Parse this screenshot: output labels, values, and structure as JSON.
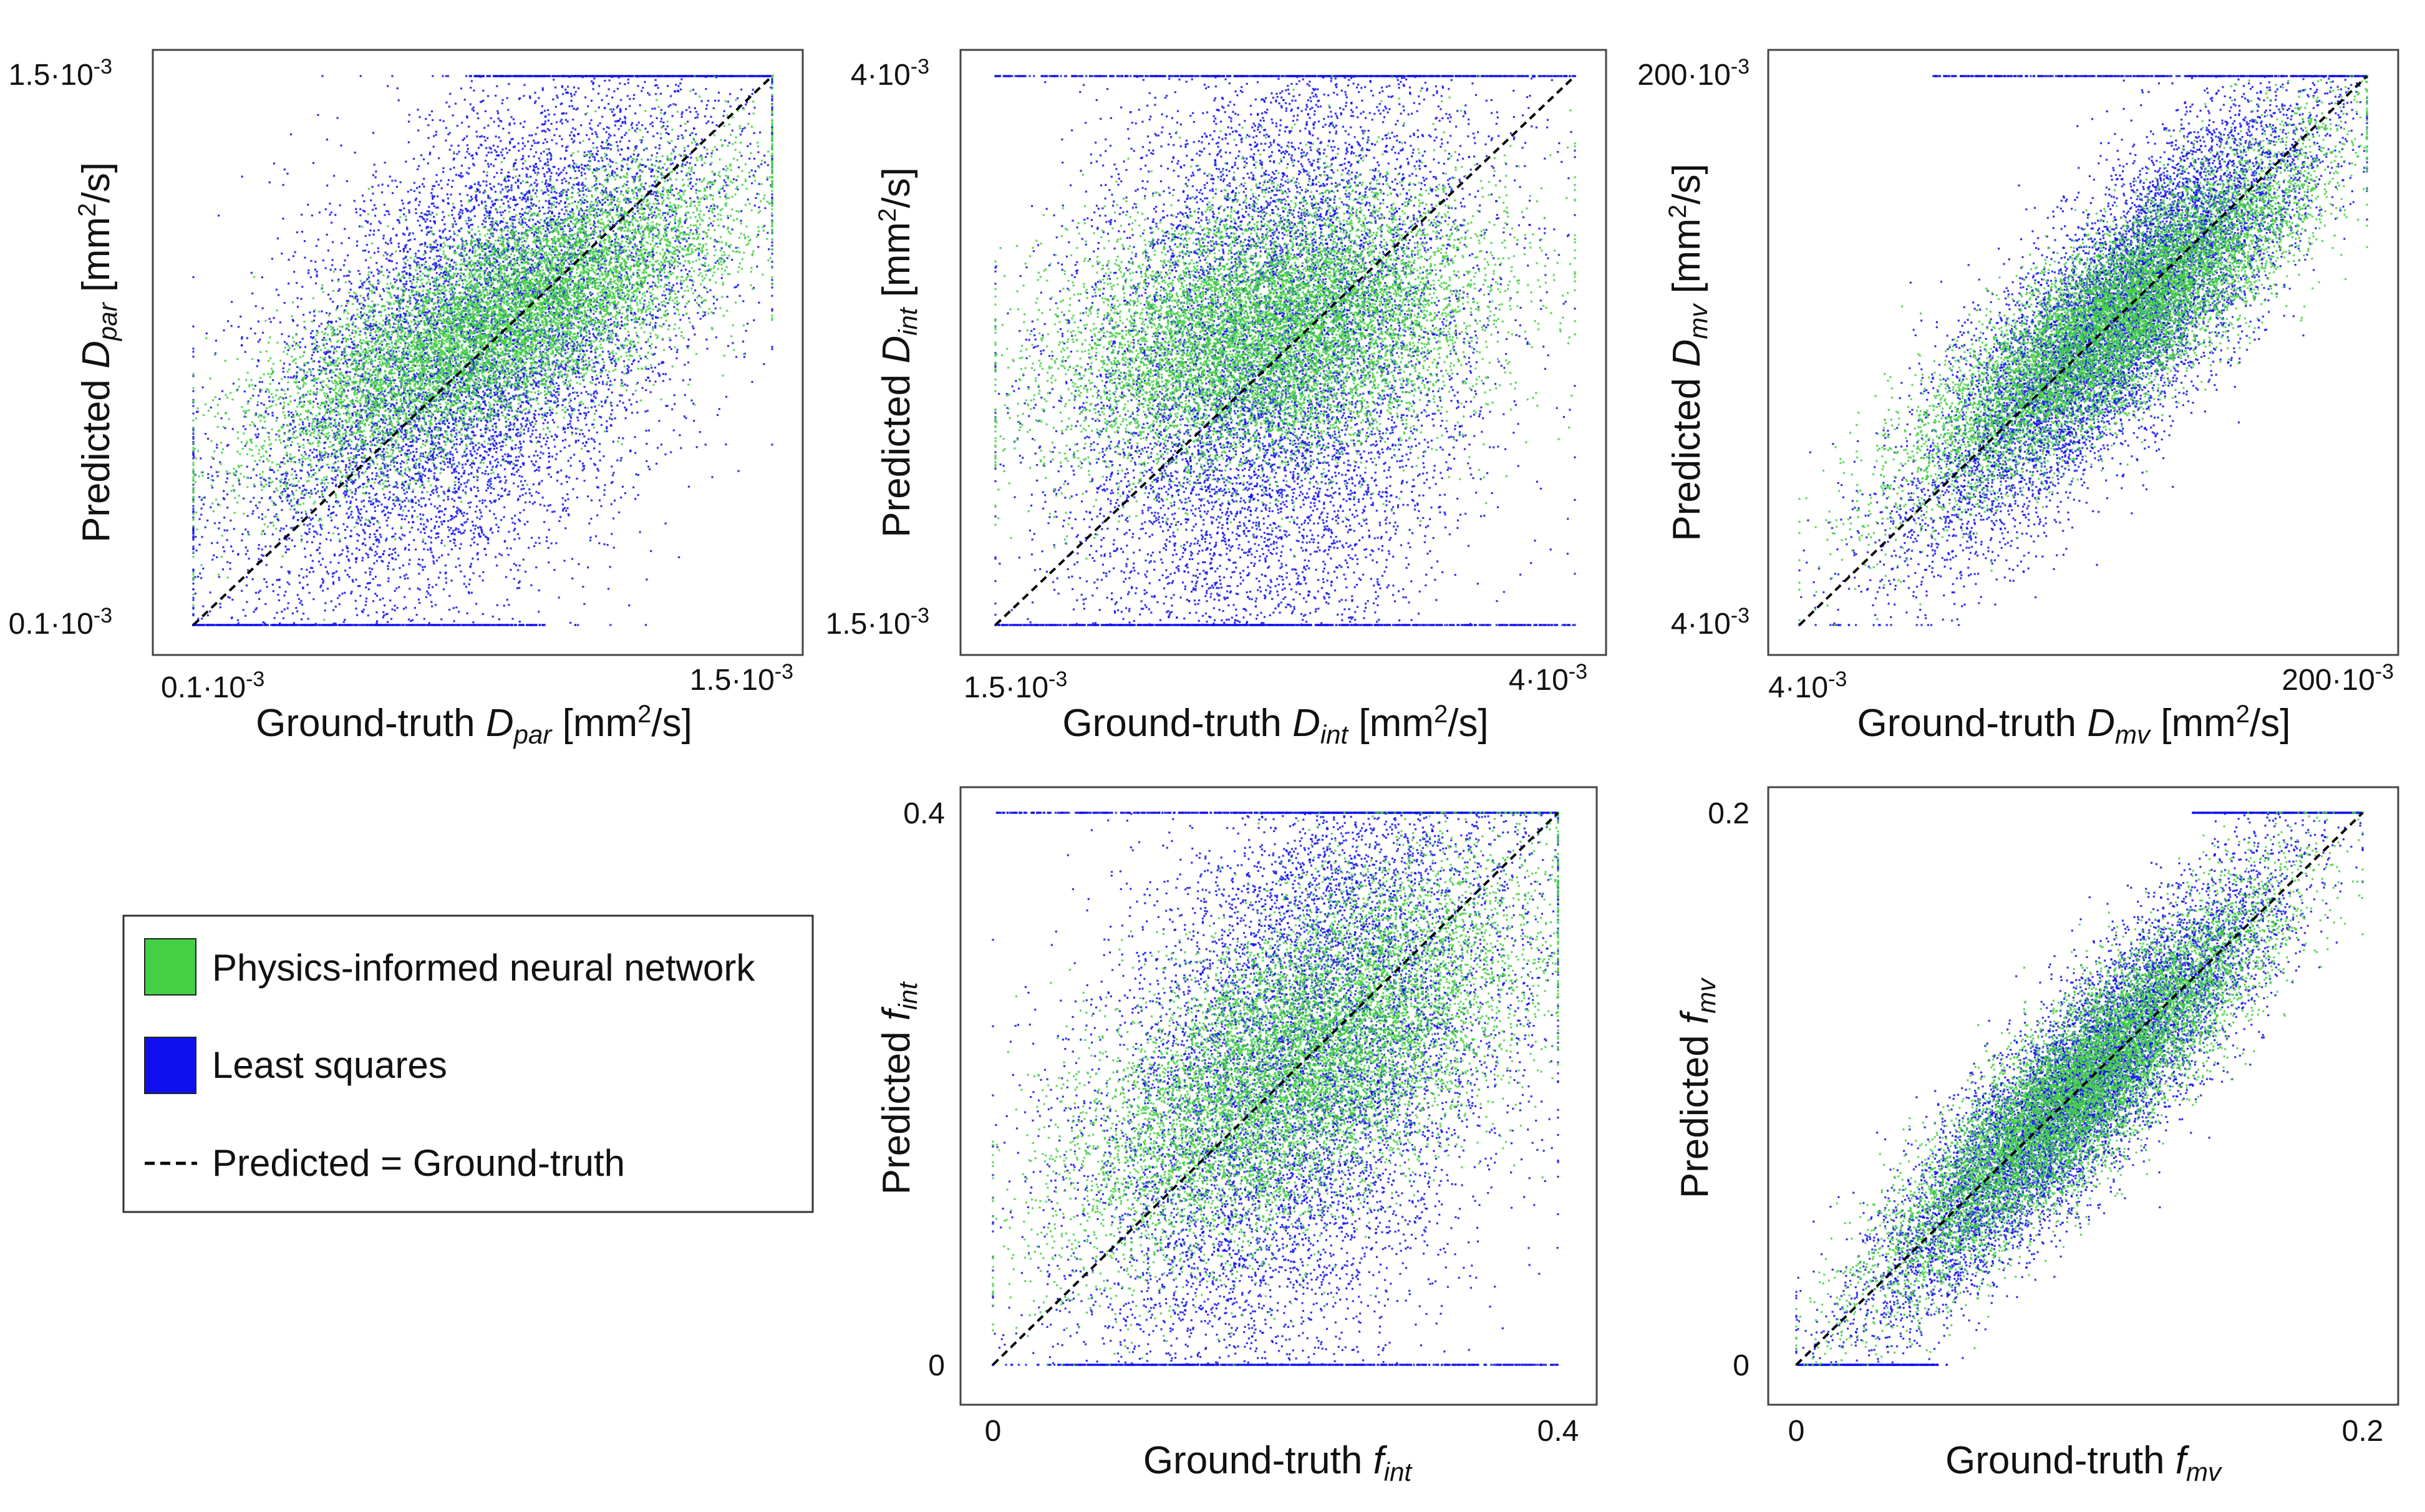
{
  "figure": {
    "legend": {
      "entries": [
        {
          "label": "Physics-informed neural network",
          "color": "#44d044",
          "kind": "swatch"
        },
        {
          "label": "Least squares",
          "color": "#1010ee",
          "kind": "swatch"
        },
        {
          "label": "Predicted = Ground-truth",
          "color": "#000000",
          "kind": "dashed-line"
        }
      ]
    }
  },
  "chart_data": [
    {
      "type": "scatter",
      "id": "dpar",
      "xlabel": {
        "pre": "Ground-truth ",
        "sym": "D",
        "sub": "par",
        "post": " [mm",
        "sup": "2",
        "tail": "/s]"
      },
      "ylabel": {
        "pre": "Predicted ",
        "sym": "D",
        "sub": "par",
        "post": " [mm",
        "sup": "2",
        "tail": "/s]"
      },
      "xlim": [
        0.1,
        1.5
      ],
      "ylim": [
        0.1,
        1.5
      ],
      "xticks": [
        {
          "label": "0.1·10",
          "exp": "-3",
          "value": 0.1
        },
        {
          "label": "1.5·10",
          "exp": "-3",
          "value": 1.5
        }
      ],
      "yticks": [
        {
          "label": "0.1·10",
          "exp": "-3",
          "value": 0.1
        },
        {
          "label": "1.5·10",
          "exp": "-3",
          "value": 1.5
        }
      ],
      "units_note": "values in 10^-3 mm^2/s",
      "identity_line": true,
      "series": [
        {
          "name": "Physics-informed neural network",
          "color": "#44d044",
          "n_points": 9000,
          "model": {
            "mean_gt": 0.85,
            "sd_gt": 0.28,
            "slope": 0.5,
            "intercept": 0.45,
            "noise": 0.13
          }
        },
        {
          "name": "Least squares",
          "color": "#1010ee",
          "n_points": 9000,
          "model": {
            "mean_gt": 0.8,
            "sd_gt": 0.3,
            "slope": 0.75,
            "intercept": 0.22,
            "noise": 0.3
          },
          "clipped_bands": [
            {
              "value": 0.1,
              "x_range": [
                0.1,
                0.95
              ]
            },
            {
              "value": 1.5,
              "x_range": [
                0.78,
                1.5
              ]
            }
          ]
        }
      ]
    },
    {
      "type": "scatter",
      "id": "dint",
      "xlabel": {
        "pre": "Ground-truth ",
        "sym": "D",
        "sub": "int",
        "post": " [mm",
        "sup": "2",
        "tail": "/s]"
      },
      "ylabel": {
        "pre": "Predicted ",
        "sym": "D",
        "sub": "int",
        "post": " [mm",
        "sup": "2",
        "tail": "/s]"
      },
      "xlim": [
        1.5,
        4.0
      ],
      "ylim": [
        1.5,
        4.0
      ],
      "xticks": [
        {
          "label": "1.5·10",
          "exp": "-3",
          "value": 1.5
        },
        {
          "label": "4·10",
          "exp": "-3",
          "value": 4.0
        }
      ],
      "yticks": [
        {
          "label": "1.5·10",
          "exp": "-3",
          "value": 1.5
        },
        {
          "label": "4·10",
          "exp": "-3",
          "value": 4.0
        }
      ],
      "units_note": "values in 10^-3 mm^2/s",
      "identity_line": true,
      "series": [
        {
          "name": "Physics-informed neural network",
          "color": "#44d044",
          "n_points": 9000,
          "model": {
            "mean_gt": 2.7,
            "sd_gt": 0.45,
            "slope": 0.2,
            "intercept": 2.3,
            "noise": 0.3
          }
        },
        {
          "name": "Least squares",
          "color": "#1010ee",
          "n_points": 9000,
          "model": {
            "mean_gt": 2.7,
            "sd_gt": 0.45,
            "slope": 0.45,
            "intercept": 1.5,
            "noise": 0.75
          },
          "clipped_bands": [
            {
              "value": 1.5,
              "x_range": [
                1.5,
                4.0
              ]
            },
            {
              "value": 4.0,
              "x_range": [
                1.5,
                4.0
              ]
            }
          ]
        }
      ]
    },
    {
      "type": "scatter",
      "id": "dmv",
      "xlabel": {
        "pre": "Ground-truth ",
        "sym": "D",
        "sub": "mv",
        "post": " [mm",
        "sup": "2",
        "tail": "/s]"
      },
      "ylabel": {
        "pre": "Predicted ",
        "sym": "D",
        "sub": "mv",
        "post": " [mm",
        "sup": "2",
        "tail": "/s]"
      },
      "xlim": [
        4,
        200
      ],
      "ylim": [
        4,
        200
      ],
      "scale": "log",
      "xticks": [
        {
          "label": "4·10",
          "exp": "-3",
          "value": 4
        },
        {
          "label": "200·10",
          "exp": "-3",
          "value": 200
        }
      ],
      "yticks": [
        {
          "label": "4·10",
          "exp": "-3",
          "value": 4
        },
        {
          "label": "200·10",
          "exp": "-3",
          "value": 200
        }
      ],
      "units_note": "values in 10^-3 mm^2/s",
      "identity_line": true,
      "series": [
        {
          "name": "Physics-informed neural network",
          "color": "#44d044",
          "n_points": 9000,
          "model": {
            "mean_gt": 1.55,
            "sd_gt": 0.3,
            "slope": 0.75,
            "intercept": 0.38,
            "noise": 0.14
          }
        },
        {
          "name": "Least squares",
          "color": "#1010ee",
          "n_points": 9000,
          "model": {
            "mean_gt": 1.55,
            "sd_gt": 0.3,
            "slope": 0.95,
            "intercept": 0.08,
            "noise": 0.2
          },
          "clipped_bands": [
            {
              "value": 200,
              "x_range": [
                10,
                200
              ]
            }
          ]
        }
      ]
    },
    {
      "type": "scatter",
      "id": "fint",
      "xlabel": {
        "pre": "Ground-truth ",
        "sym": "f",
        "sub": "int"
      },
      "ylabel": {
        "pre": "Predicted ",
        "sym": "f",
        "sub": "int"
      },
      "xlim": [
        0,
        0.4
      ],
      "ylim": [
        0,
        0.4
      ],
      "xticks": [
        {
          "label": "0",
          "value": 0
        },
        {
          "label": "0.4",
          "value": 0.4
        }
      ],
      "yticks": [
        {
          "label": "0",
          "value": 0
        },
        {
          "label": "0.4",
          "value": 0.4
        }
      ],
      "identity_line": true,
      "series": [
        {
          "name": "Physics-informed neural network",
          "color": "#44d044",
          "n_points": 9000,
          "model": {
            "mean_gt": 0.22,
            "sd_gt": 0.08,
            "slope": 0.55,
            "intercept": 0.1,
            "noise": 0.055
          }
        },
        {
          "name": "Least squares",
          "color": "#1010ee",
          "n_points": 9000,
          "model": {
            "mean_gt": 0.22,
            "sd_gt": 0.08,
            "slope": 0.7,
            "intercept": 0.07,
            "noise": 0.11
          },
          "clipped_bands": [
            {
              "value": 0,
              "x_range": [
                0.05,
                0.4
              ]
            },
            {
              "value": 0.4,
              "x_range": [
                0.0,
                0.4
              ]
            }
          ]
        }
      ]
    },
    {
      "type": "scatter",
      "id": "fmv",
      "xlabel": {
        "pre": "Ground-truth ",
        "sym": "f",
        "sub": "mv"
      },
      "ylabel": {
        "pre": "Predicted ",
        "sym": "f",
        "sub": "mv"
      },
      "xlim": [
        0,
        0.2
      ],
      "ylim": [
        0,
        0.2
      ],
      "xticks": [
        {
          "label": "0",
          "value": 0
        },
        {
          "label": "0.2",
          "value": 0.2
        }
      ],
      "yticks": [
        {
          "label": "0",
          "value": 0
        },
        {
          "label": "0.2",
          "value": 0.2
        }
      ],
      "identity_line": true,
      "series": [
        {
          "name": "Physics-informed neural network",
          "color": "#44d044",
          "n_points": 9000,
          "model": {
            "mean_gt": 0.1,
            "sd_gt": 0.035,
            "slope": 0.92,
            "intercept": 0.008,
            "noise": 0.016
          }
        },
        {
          "name": "Least squares",
          "color": "#1010ee",
          "n_points": 9000,
          "model": {
            "mean_gt": 0.1,
            "sd_gt": 0.035,
            "slope": 1.0,
            "intercept": 0.0,
            "noise": 0.018
          },
          "clipped_bands": [
            {
              "value": 0.2,
              "x_range": [
                0.14,
                0.2
              ]
            },
            {
              "value": 0,
              "x_range": [
                0.0,
                0.05
              ]
            }
          ]
        }
      ]
    }
  ]
}
